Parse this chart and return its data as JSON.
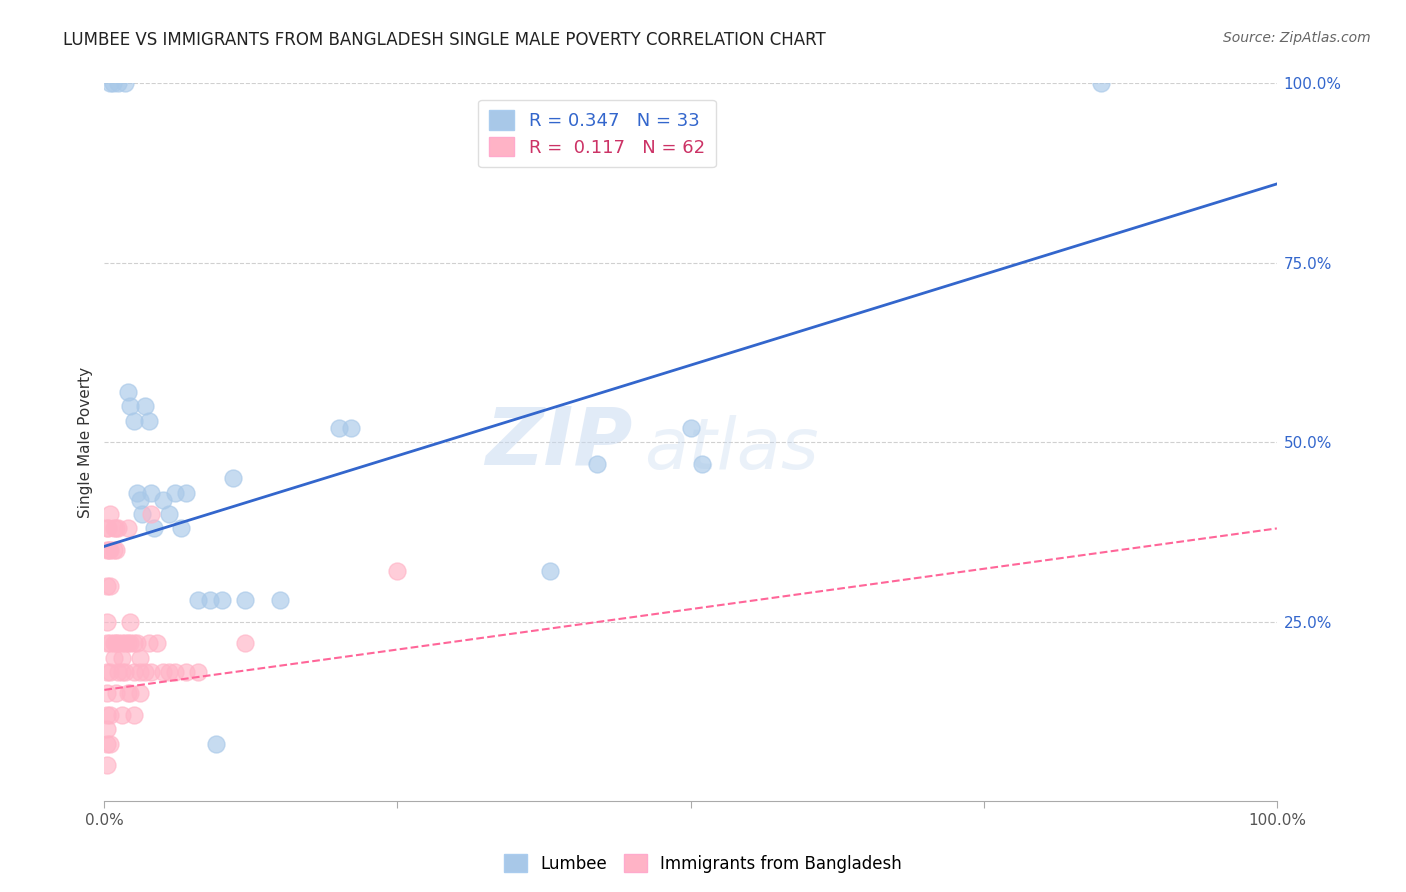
{
  "title": "LUMBEE VS IMMIGRANTS FROM BANGLADESH SINGLE MALE POVERTY CORRELATION CHART",
  "source": "Source: ZipAtlas.com",
  "ylabel": "Single Male Poverty",
  "lumbee_color": "#a8c8e8",
  "lumbee_line_color": "#3366cc",
  "bangladesh_color": "#ffb3c6",
  "bangladesh_line_color": "#ff6699",
  "bangladesh_line_dash": true,
  "watermark": "ZIPatlas",
  "lumbee_x": [
    0.005,
    0.007,
    0.012,
    0.018,
    0.02,
    0.022,
    0.025,
    0.028,
    0.03,
    0.032,
    0.035,
    0.038,
    0.04,
    0.042,
    0.05,
    0.055,
    0.06,
    0.065,
    0.07,
    0.08,
    0.09,
    0.095,
    0.1,
    0.11,
    0.12,
    0.15,
    0.2,
    0.21,
    0.38,
    0.42,
    0.5,
    0.51,
    0.85
  ],
  "lumbee_y": [
    1.0,
    1.0,
    1.0,
    1.0,
    0.57,
    0.55,
    0.53,
    0.43,
    0.42,
    0.4,
    0.55,
    0.53,
    0.43,
    0.38,
    0.42,
    0.4,
    0.43,
    0.38,
    0.43,
    0.28,
    0.28,
    0.08,
    0.28,
    0.45,
    0.28,
    0.28,
    0.52,
    0.52,
    0.32,
    0.47,
    0.52,
    0.47,
    1.0
  ],
  "bangladesh_x": [
    0.002,
    0.002,
    0.002,
    0.002,
    0.002,
    0.002,
    0.002,
    0.002,
    0.002,
    0.002,
    0.002,
    0.003,
    0.004,
    0.005,
    0.005,
    0.005,
    0.005,
    0.005,
    0.005,
    0.005,
    0.008,
    0.008,
    0.008,
    0.008,
    0.01,
    0.01,
    0.01,
    0.01,
    0.012,
    0.012,
    0.012,
    0.015,
    0.015,
    0.015,
    0.015,
    0.018,
    0.018,
    0.02,
    0.02,
    0.02,
    0.022,
    0.022,
    0.022,
    0.025,
    0.025,
    0.025,
    0.028,
    0.03,
    0.03,
    0.03,
    0.035,
    0.038,
    0.04,
    0.04,
    0.045,
    0.05,
    0.055,
    0.06,
    0.07,
    0.08,
    0.12,
    0.25
  ],
  "bangladesh_y": [
    0.38,
    0.35,
    0.3,
    0.25,
    0.22,
    0.18,
    0.15,
    0.12,
    0.1,
    0.08,
    0.05,
    0.38,
    0.35,
    0.4,
    0.35,
    0.3,
    0.22,
    0.18,
    0.12,
    0.08,
    0.38,
    0.35,
    0.22,
    0.2,
    0.38,
    0.35,
    0.22,
    0.15,
    0.38,
    0.22,
    0.18,
    0.22,
    0.2,
    0.18,
    0.12,
    0.22,
    0.18,
    0.38,
    0.22,
    0.15,
    0.25,
    0.22,
    0.15,
    0.22,
    0.18,
    0.12,
    0.22,
    0.2,
    0.18,
    0.15,
    0.18,
    0.22,
    0.4,
    0.18,
    0.22,
    0.18,
    0.18,
    0.18,
    0.18,
    0.18,
    0.22,
    0.32
  ],
  "lumbee_line_x0": 0.0,
  "lumbee_line_y0": 0.355,
  "lumbee_line_x1": 1.0,
  "lumbee_line_y1": 0.86,
  "bangladesh_line_x0": 0.0,
  "bangladesh_line_y0": 0.155,
  "bangladesh_line_x1": 1.0,
  "bangladesh_line_y1": 0.38,
  "xlim": [
    0.0,
    1.0
  ],
  "ylim": [
    0.0,
    1.0
  ],
  "yticks": [
    0.25,
    0.5,
    0.75,
    1.0
  ],
  "ytick_labels": [
    "25.0%",
    "50.0%",
    "75.0%",
    "100.0%"
  ],
  "xtick_labels_show": [
    "0.0%",
    "100.0%"
  ],
  "grid_color": "#d0d0d0",
  "title_fontsize": 12,
  "axis_label_fontsize": 11,
  "tick_fontsize": 11,
  "legend_fontsize": 13,
  "source_fontsize": 10
}
